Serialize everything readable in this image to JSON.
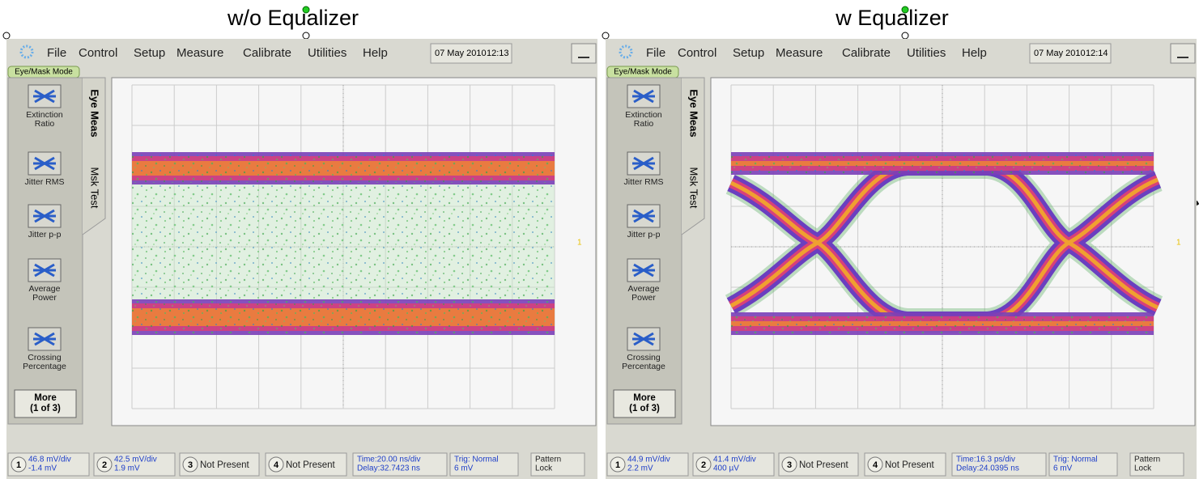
{
  "panels": [
    {
      "title": "w/o Equalizer",
      "menu": [
        "File",
        "Control",
        "Setup",
        "Measure",
        "Calibrate",
        "Utilities",
        "Help"
      ],
      "date": "07 May 2010",
      "time": "12:13",
      "mode": "Eye/Mask Mode",
      "tabs": [
        "Eye Meas",
        "Msk Test"
      ],
      "buttons": [
        [
          "Extinction",
          "Ratio"
        ],
        [
          "Jitter RMS"
        ],
        [
          "Jitter p-p"
        ],
        [
          "Average",
          "Power"
        ],
        [
          "Crossing",
          "Percentage"
        ],
        [
          "More",
          "(1 of 3)"
        ]
      ],
      "level_marker": "1",
      "status": [
        {
          "channel": "1",
          "lines": [
            "46.8 mV/div",
            "-1.4 mV"
          ]
        },
        {
          "channel": "2",
          "lines": [
            "42.5 mV/div",
            "1.9 mV"
          ]
        },
        {
          "channel": "3",
          "lines": [
            "Not Present"
          ]
        },
        {
          "channel": "4",
          "lines": [
            "Not Present"
          ]
        },
        {
          "lines": [
            "Time:20.00 ns/div",
            "Delay:32.7423 ns"
          ]
        },
        {
          "lines": [
            "Trig: Normal",
            "6 mV"
          ]
        },
        {
          "lines": [
            "Pattern",
            "Lock"
          ]
        }
      ]
    },
    {
      "title": "w Equalizer",
      "menu": [
        "File",
        "Control",
        "Setup",
        "Measure",
        "Calibrate",
        "Utilities",
        "Help"
      ],
      "date": "07 May 2010",
      "time": "12:14",
      "mode": "Eye/Mask Mode",
      "tabs": [
        "Eye Meas",
        "Msk Test"
      ],
      "buttons": [
        [
          "Extinction",
          "Ratio"
        ],
        [
          "Jitter RMS"
        ],
        [
          "Jitter p-p"
        ],
        [
          "Average",
          "Power"
        ],
        [
          "Crossing",
          "Percentage"
        ],
        [
          "More",
          "(1 of 3)"
        ]
      ],
      "level_marker": "1",
      "status": [
        {
          "channel": "1",
          "lines": [
            "44.9 mV/div",
            "2.2 mV"
          ]
        },
        {
          "channel": "2",
          "lines": [
            "41.4 mV/div",
            "400 µV"
          ]
        },
        {
          "channel": "3",
          "lines": [
            "Not Present"
          ]
        },
        {
          "channel": "4",
          "lines": [
            "Not Present"
          ]
        },
        {
          "lines": [
            "Time:16.3 ps/div",
            "Delay:24.0395 ns"
          ]
        },
        {
          "lines": [
            "Trig: Normal",
            "6 mV"
          ]
        },
        {
          "lines": [
            "Pattern",
            "Lock"
          ]
        }
      ]
    }
  ]
}
